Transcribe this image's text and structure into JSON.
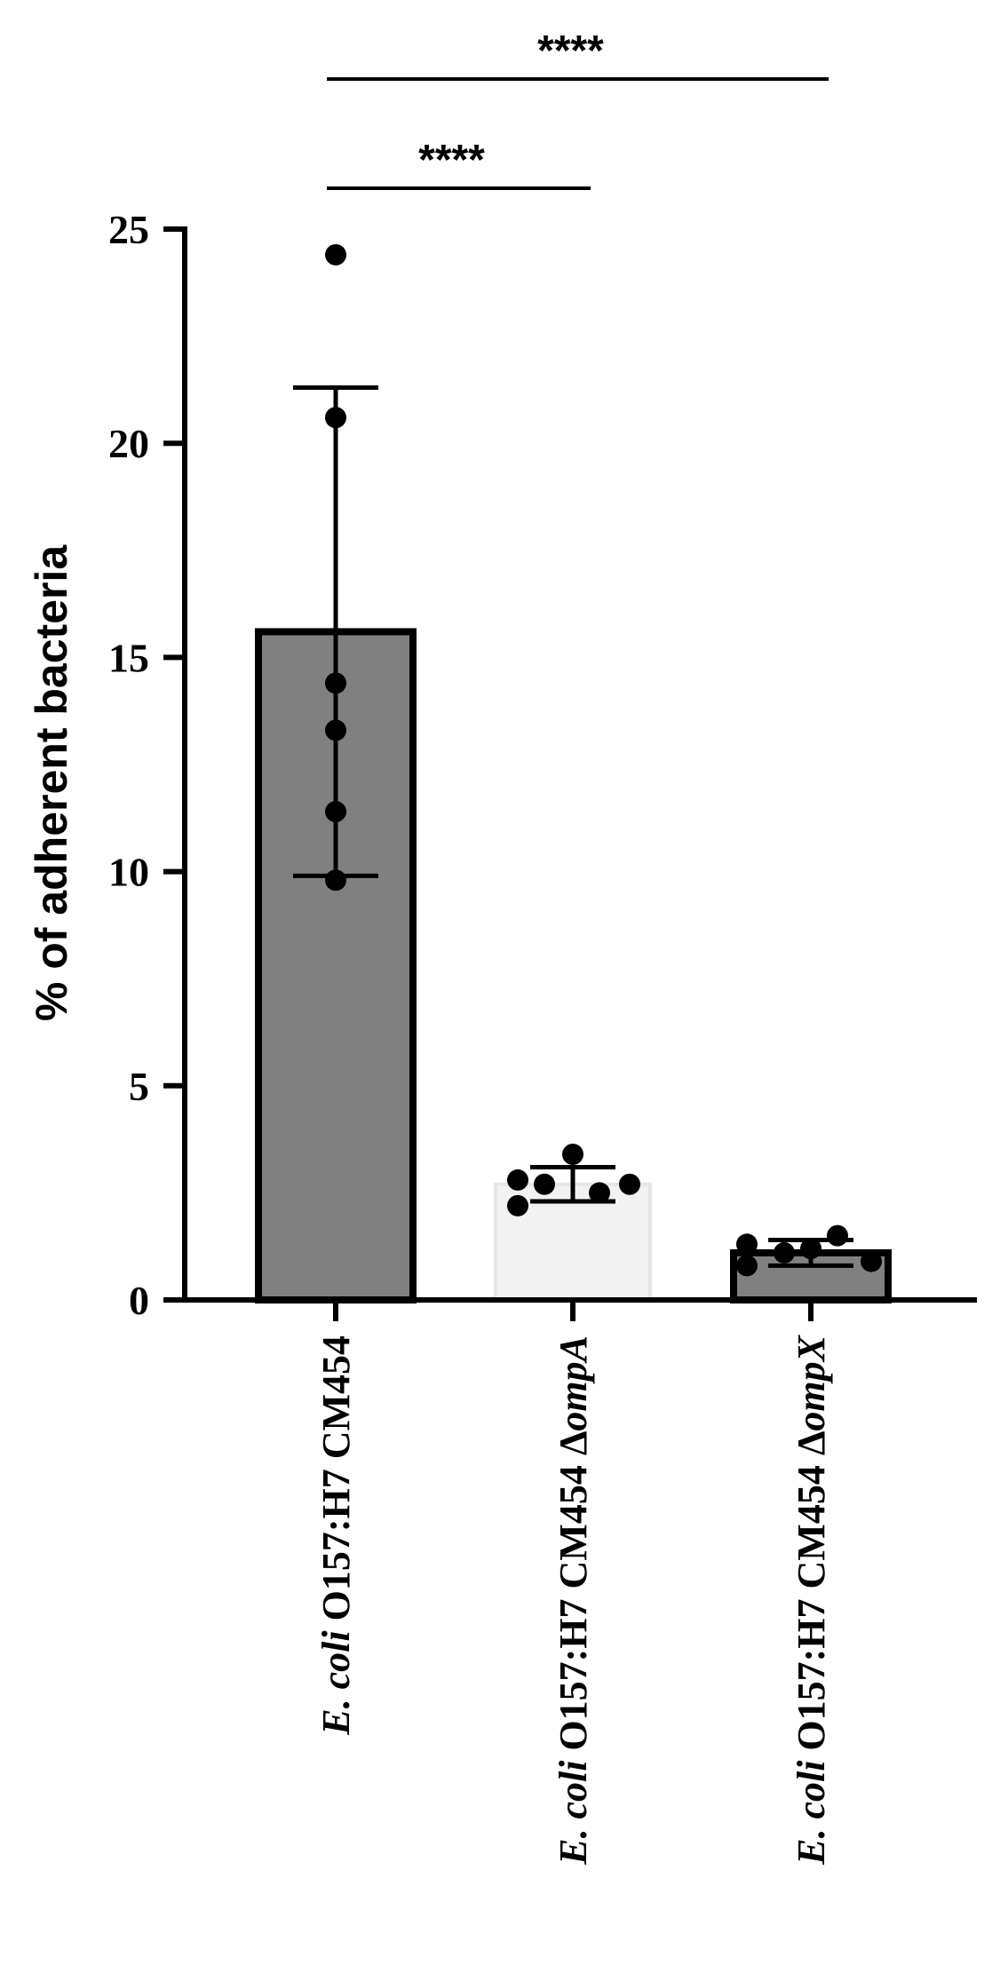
{
  "chart_data": {
    "type": "bar",
    "ylabel": "% of adherent bacteria",
    "ylim": [
      0,
      25
    ],
    "yticks": [
      0,
      5,
      10,
      15,
      20,
      25
    ],
    "grid": false,
    "categories": [
      {
        "label_parts": [
          {
            "text": "E. coli",
            "italic": true
          },
          {
            "text": " O157:H7 CM454",
            "italic": false
          }
        ]
      },
      {
        "label_parts": [
          {
            "text": "E. coli",
            "italic": true
          },
          {
            "text": " O157:H7 CM454 Δ",
            "italic": false
          },
          {
            "text": "ompA",
            "italic": true
          }
        ]
      },
      {
        "label_parts": [
          {
            "text": "E. coli",
            "italic": true
          },
          {
            "text": " O157:H7 CM454 Δ",
            "italic": false
          },
          {
            "text": "ompX",
            "italic": true
          }
        ]
      }
    ],
    "values": [
      15.6,
      2.7,
      1.1
    ],
    "errors": [
      5.7,
      0.4,
      0.3
    ],
    "bar_colors": [
      "#808080",
      "#f2f2f2",
      "#808080"
    ],
    "points": [
      [
        24.4,
        20.6,
        14.4,
        13.3,
        11.4,
        9.8
      ],
      [
        2.2,
        2.8,
        2.7,
        3.4,
        2.5,
        2.7
      ],
      [
        0.8,
        1.3,
        1.1,
        1.2,
        1.5,
        0.9
      ]
    ],
    "significance": [
      {
        "from": 0,
        "to": 1,
        "label": "****"
      },
      {
        "from": 0,
        "to": 2,
        "label": "****"
      }
    ]
  }
}
